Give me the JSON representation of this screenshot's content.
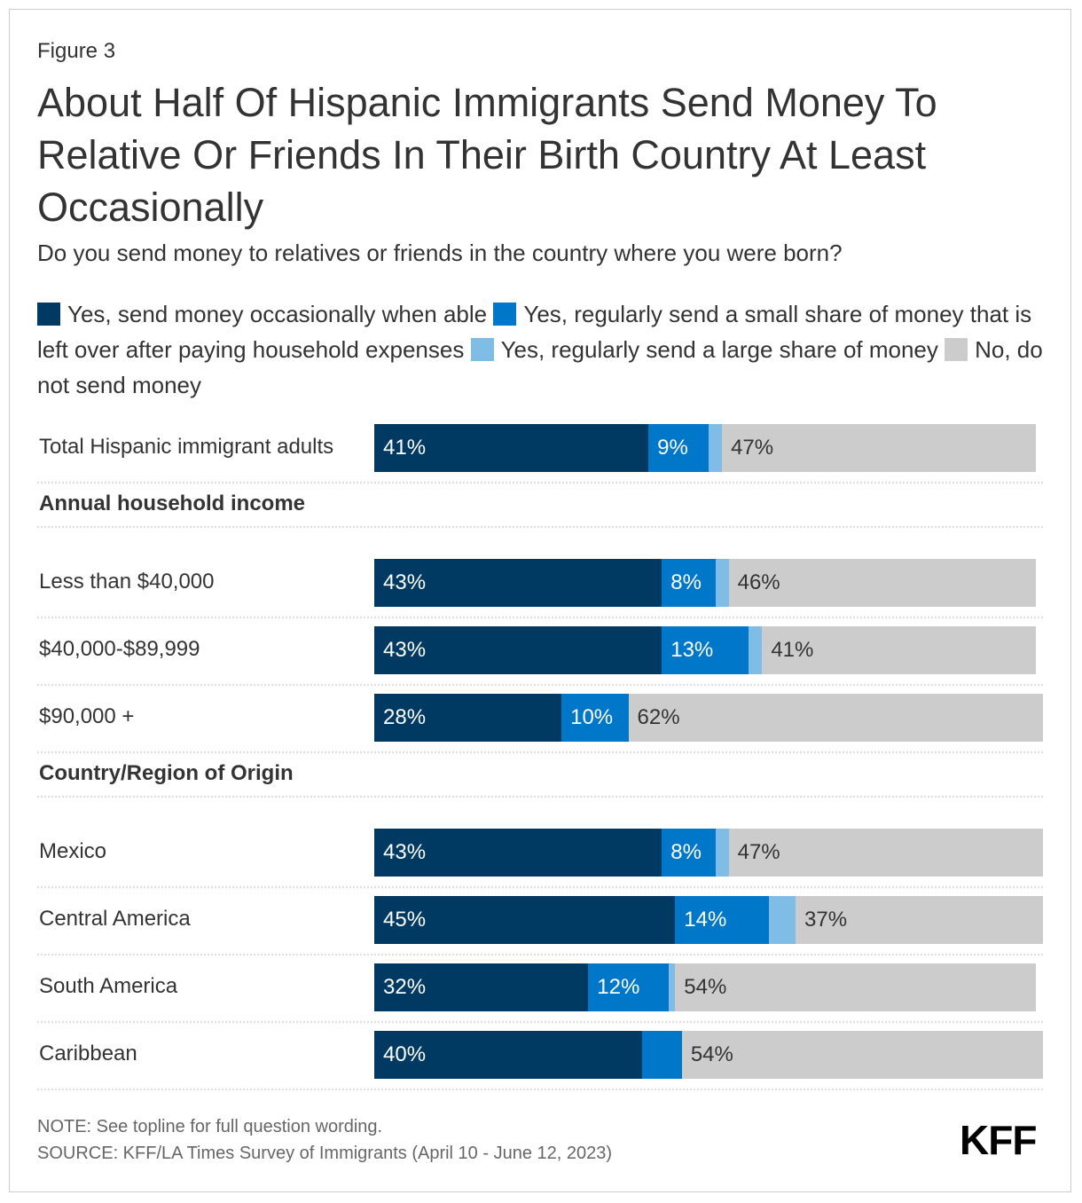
{
  "figure_label": "Figure 3",
  "chart_data": {
    "type": "bar",
    "orientation": "horizontal-stacked",
    "title": "About Half Of Hispanic Immigrants Send Money To Relative Or Friends In Their Birth Country At Least Occasionally",
    "subtitle": "Do you send money to relatives or friends in the country where you were born?",
    "legend_placement": "top",
    "series": [
      {
        "name": "Yes, send money occasionally when able",
        "color": "#003a63"
      },
      {
        "name": "Yes, regularly send a small share of money that is left over after paying household expenses",
        "color": "#0077c8"
      },
      {
        "name": "Yes, regularly send a large share of money",
        "color": "#7fbce6"
      },
      {
        "name": "No, do not send money",
        "color": "#cccccc"
      }
    ],
    "rows": [
      {
        "type": "row",
        "label": "Total Hispanic immigrant adults",
        "values": [
          41,
          9,
          2,
          47
        ]
      },
      {
        "type": "group",
        "label": "Annual household income"
      },
      {
        "type": "row",
        "label": "Less than $40,000",
        "values": [
          43,
          8,
          2,
          46
        ]
      },
      {
        "type": "row",
        "label": "$40,000-$89,999",
        "values": [
          43,
          13,
          2,
          41
        ]
      },
      {
        "type": "row",
        "label": "$90,000 +",
        "values": [
          28,
          10,
          0,
          62
        ]
      },
      {
        "type": "group",
        "label": "Country/Region of Origin"
      },
      {
        "type": "row",
        "label": "Mexico",
        "values": [
          43,
          8,
          2,
          47
        ]
      },
      {
        "type": "row",
        "label": "Central America",
        "values": [
          45,
          14,
          4,
          37
        ]
      },
      {
        "type": "row",
        "label": "South America",
        "values": [
          32,
          12,
          1,
          54
        ]
      },
      {
        "type": "row",
        "label": "Caribbean",
        "values": [
          40,
          6,
          0,
          54
        ]
      }
    ],
    "xlim": [
      0,
      100
    ],
    "grid": false
  },
  "note": "NOTE: See topline for full question wording.",
  "source": "SOURCE: KFF/LA Times Survey of Immigrants (April 10 - June 12, 2023)",
  "logo": "KFF"
}
